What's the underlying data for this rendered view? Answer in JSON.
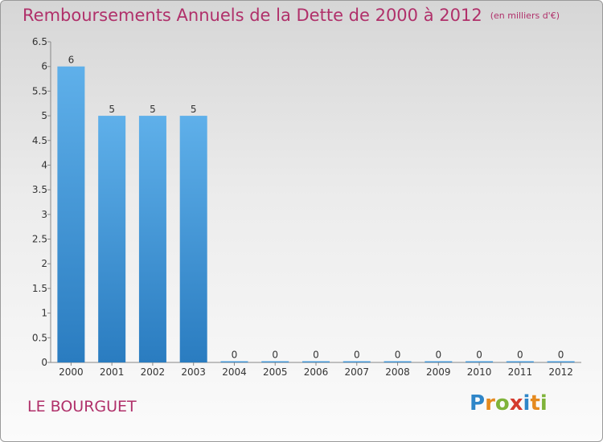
{
  "header": {
    "title": "Remboursements Annuels de la Dette de 2000 à 2012",
    "subtitle": "(en milliers d'€)"
  },
  "footer": {
    "place": "LE BOURGUET",
    "logo_letters": [
      "P",
      "r",
      "o",
      "x",
      "i",
      "t",
      "i"
    ],
    "logo_colors": [
      "#2f86c8",
      "#e58a1f",
      "#7fb33a",
      "#d43a2e",
      "#2f86c8",
      "#e58a1f",
      "#7fb33a"
    ]
  },
  "colors": {
    "title": "#b0306a",
    "bar_top": "#5fb0ea",
    "bar_bottom": "#2a7cc0"
  },
  "chart_data": {
    "type": "bar",
    "categories": [
      "2000",
      "2001",
      "2002",
      "2003",
      "2004",
      "2005",
      "2006",
      "2007",
      "2008",
      "2009",
      "2010",
      "2011",
      "2012"
    ],
    "values": [
      6,
      5,
      5,
      5,
      0,
      0,
      0,
      0,
      0,
      0,
      0,
      0,
      0
    ],
    "data_labels": [
      "6",
      "5",
      "5",
      "5",
      "0",
      "0",
      "0",
      "0",
      "0",
      "0",
      "0",
      "0",
      "0"
    ],
    "yticks": [
      "0",
      "0.5",
      "1",
      "1.5",
      "2",
      "2.5",
      "3",
      "3.5",
      "4",
      "4.5",
      "5",
      "5.5",
      "6",
      "6.5"
    ],
    "ylim": [
      0,
      6.5
    ],
    "title": "Remboursements Annuels de la Dette de 2000 à 2012",
    "xlabel": "",
    "ylabel": "",
    "grid": false
  }
}
